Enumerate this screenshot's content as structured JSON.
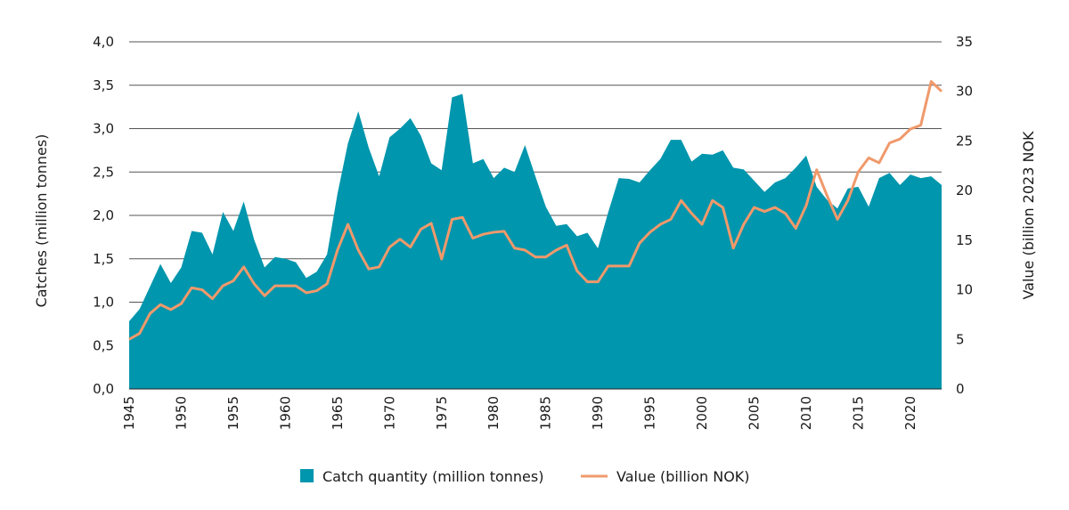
{
  "chart_data": {
    "type": "area+line",
    "xlabel": "",
    "ylabel_left": "Catches (million tonnes)",
    "ylabel_right": "Value (billion 2023 NOK",
    "xlim": [
      1945,
      2023
    ],
    "ylim_left": [
      0,
      4.0
    ],
    "ylim_right": [
      0,
      35
    ],
    "x_ticks": [
      "1945",
      "1950",
      "1955",
      "1960",
      "1965",
      "1970",
      "1975",
      "1980",
      "1985",
      "1990",
      "1995",
      "2000",
      "2005",
      "2010",
      "2015",
      "2020"
    ],
    "y_left_ticks": [
      "0,0",
      "0,5",
      "1,0",
      "1,5",
      "2,0",
      "2,5",
      "3,0",
      "3,5",
      "4,0"
    ],
    "y_right_ticks": [
      "0",
      "5",
      "10",
      "15",
      "20",
      "25",
      "30",
      "35"
    ],
    "grid": true,
    "legend_position": "bottom",
    "x": [
      1945,
      1946,
      1947,
      1948,
      1949,
      1950,
      1951,
      1952,
      1953,
      1954,
      1955,
      1956,
      1957,
      1958,
      1959,
      1960,
      1961,
      1962,
      1963,
      1964,
      1965,
      1966,
      1967,
      1968,
      1969,
      1970,
      1971,
      1972,
      1973,
      1974,
      1975,
      1976,
      1977,
      1978,
      1979,
      1980,
      1981,
      1982,
      1983,
      1984,
      1985,
      1986,
      1987,
      1988,
      1989,
      1990,
      1991,
      1992,
      1993,
      1994,
      1995,
      1996,
      1997,
      1998,
      1999,
      2000,
      2001,
      2002,
      2003,
      2004,
      2005,
      2006,
      2007,
      2008,
      2009,
      2010,
      2011,
      2012,
      2013,
      2014,
      2015,
      2016,
      2017,
      2018,
      2019,
      2020,
      2021,
      2022,
      2023
    ],
    "series": [
      {
        "name": "Catch quantity (million tonnes)",
        "type": "area",
        "axis": "left",
        "color": "#0096ad",
        "values": [
          0.78,
          0.92,
          1.18,
          1.44,
          1.22,
          1.4,
          1.82,
          1.8,
          1.55,
          2.04,
          1.82,
          2.16,
          1.72,
          1.4,
          1.52,
          1.5,
          1.46,
          1.28,
          1.35,
          1.55,
          2.25,
          2.83,
          3.2,
          2.78,
          2.45,
          2.9,
          3.0,
          3.12,
          2.92,
          2.6,
          2.52,
          3.36,
          3.4,
          2.6,
          2.65,
          2.43,
          2.55,
          2.5,
          2.81,
          2.45,
          2.1,
          1.88,
          1.9,
          1.76,
          1.8,
          1.62,
          2.04,
          2.43,
          2.42,
          2.38,
          2.52,
          2.65,
          2.87,
          2.87,
          2.62,
          2.71,
          2.7,
          2.75,
          2.55,
          2.53,
          2.4,
          2.27,
          2.38,
          2.43,
          2.55,
          2.69,
          2.33,
          2.18,
          2.08,
          2.31,
          2.33,
          2.1,
          2.43,
          2.49,
          2.35,
          2.47,
          2.43,
          2.45,
          2.35
        ]
      },
      {
        "name": "Value (billion NOK)",
        "type": "line",
        "axis": "right",
        "color": "#f0996b",
        "values": [
          5.0,
          5.6,
          7.6,
          8.5,
          8.0,
          8.6,
          10.2,
          10.0,
          9.1,
          10.4,
          10.9,
          12.3,
          10.6,
          9.4,
          10.4,
          10.4,
          10.4,
          9.7,
          9.9,
          10.6,
          14.0,
          16.6,
          14.0,
          12.1,
          12.3,
          14.3,
          15.1,
          14.3,
          16.1,
          16.7,
          13.1,
          17.1,
          17.3,
          15.2,
          15.6,
          15.8,
          15.9,
          14.2,
          14.0,
          13.3,
          13.3,
          14.0,
          14.5,
          11.9,
          10.8,
          10.8,
          12.4,
          12.4,
          12.4,
          14.7,
          15.8,
          16.6,
          17.1,
          19.0,
          17.7,
          16.6,
          19.0,
          18.3,
          14.2,
          16.6,
          18.3,
          17.9,
          18.3,
          17.7,
          16.2,
          18.5,
          22.1,
          19.5,
          17.1,
          19.0,
          21.9,
          23.3,
          22.8,
          24.8,
          25.2,
          26.2,
          26.6,
          31.0,
          30.0
        ]
      }
    ]
  }
}
